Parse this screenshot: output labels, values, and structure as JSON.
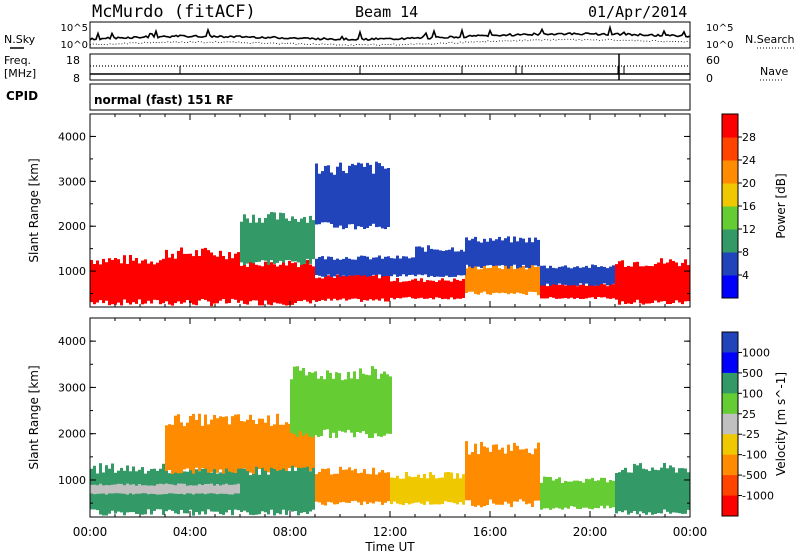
{
  "header": {
    "station": "McMurdo (fitACF)",
    "beam": "Beam 14",
    "date": "01/Apr/2014"
  },
  "side_labels": {
    "nsky": "N.Sky",
    "freq_line1": "Freq.",
    "freq_line2": "[MHz]",
    "cpid": "CPID",
    "nsearch": "N.Search",
    "nave": "Nave"
  },
  "small_axes": {
    "noise_top": "10^5",
    "noise_bottom": "10^0",
    "noise_right_top": "10^5",
    "noise_right_bottom": "10^0",
    "freq_top": "18",
    "freq_bottom": "8",
    "nave_top": "60",
    "nave_bottom": "0"
  },
  "cpid_text": "normal (fast) 151 RF",
  "colors": {
    "red": "#ff0000",
    "orange": "#ff8c00",
    "yellow": "#f0c800",
    "lightgreen": "#66cc33",
    "green": "#339966",
    "darkblue": "#2244bb",
    "blue": "#0000ff",
    "gray": "#c0c0c0"
  },
  "chart_data": [
    {
      "type": "heatmap",
      "name": "Power",
      "ylabel": "Slant Range [km]",
      "xlabel": "Time UT",
      "yticks": [
        "1000",
        "2000",
        "3000",
        "4000"
      ],
      "ylim": [
        200,
        4500
      ],
      "xlim": [
        0,
        24
      ],
      "colorbar_label": "Power [dB]",
      "colorbar_ticks": [
        "4",
        "8",
        "12",
        "16",
        "20",
        "24",
        "28"
      ],
      "colorbar_colors": [
        "#0000ff",
        "#2244bb",
        "#339966",
        "#66cc33",
        "#f0c800",
        "#ff8c00",
        "#ff4400",
        "#ff0000"
      ],
      "bands": [
        {
          "t0": 0,
          "t1": 3,
          "r0": 300,
          "r1": 1250,
          "color": "#ff0000"
        },
        {
          "t0": 3,
          "t1": 6,
          "r0": 300,
          "r1": 1400,
          "color": "#ff0000"
        },
        {
          "t0": 6,
          "t1": 9,
          "r0": 300,
          "r1": 1200,
          "color": "#ff0000"
        },
        {
          "t0": 9,
          "t1": 12,
          "r0": 350,
          "r1": 900,
          "color": "#ff0000"
        },
        {
          "t0": 12,
          "t1": 15,
          "r0": 400,
          "r1": 800,
          "color": "#ff0000"
        },
        {
          "t0": 15,
          "t1": 18,
          "r0": 500,
          "r1": 1100,
          "color": "#ff8c00"
        },
        {
          "t0": 18,
          "t1": 21,
          "r0": 400,
          "r1": 700,
          "color": "#ff0000"
        },
        {
          "t0": 21,
          "t1": 24,
          "r0": 300,
          "r1": 1200,
          "color": "#ff0000"
        },
        {
          "t0": 6,
          "t1": 9,
          "r0": 1200,
          "r1": 2200,
          "color": "#339966"
        },
        {
          "t0": 9,
          "t1": 13,
          "r0": 900,
          "r1": 1300,
          "color": "#2244bb"
        },
        {
          "t0": 13,
          "t1": 15,
          "r0": 900,
          "r1": 1500,
          "color": "#2244bb"
        },
        {
          "t0": 15,
          "t1": 18,
          "r0": 1100,
          "r1": 1700,
          "color": "#2244bb"
        },
        {
          "t0": 18,
          "t1": 21,
          "r0": 700,
          "r1": 1100,
          "color": "#2244bb"
        },
        {
          "t0": 9,
          "t1": 12,
          "r0": 2000,
          "r1": 3300,
          "color": "#2244bb"
        }
      ]
    },
    {
      "type": "heatmap",
      "name": "Velocity",
      "ylabel": "Slant Range [km]",
      "xlabel": "Time UT",
      "yticks": [
        "1000",
        "2000",
        "3000",
        "4000"
      ],
      "ylim": [
        200,
        4500
      ],
      "xlim": [
        0,
        24
      ],
      "colorbar_label": "Velocity [m s^-1]",
      "colorbar_ticks": [
        "1000",
        "500",
        "100",
        "25",
        "-25",
        "-100",
        "-500",
        "-1000"
      ],
      "colorbar_colors": [
        "#2244bb",
        "#0000ff",
        "#339966",
        "#66cc33",
        "#c0c0c0",
        "#f0c800",
        "#ff8c00",
        "#ff4400",
        "#ff0000"
      ],
      "bands": [
        {
          "t0": 0,
          "t1": 6,
          "r0": 300,
          "r1": 1250,
          "color": "#339966"
        },
        {
          "t0": 0,
          "t1": 6,
          "r0": 700,
          "r1": 900,
          "color": "#c0c0c0"
        },
        {
          "t0": 3,
          "t1": 9,
          "r0": 1200,
          "r1": 2300,
          "color": "#ff8c00"
        },
        {
          "t0": 6,
          "t1": 9,
          "r0": 300,
          "r1": 1200,
          "color": "#339966"
        },
        {
          "t0": 9,
          "t1": 12,
          "r0": 500,
          "r1": 1200,
          "color": "#ff8c00"
        },
        {
          "t0": 12,
          "t1": 15,
          "r0": 500,
          "r1": 1100,
          "color": "#f0c800"
        },
        {
          "t0": 15,
          "t1": 18,
          "r0": 500,
          "r1": 1700,
          "color": "#ff8c00"
        },
        {
          "t0": 18,
          "t1": 21,
          "r0": 400,
          "r1": 1000,
          "color": "#66cc33"
        },
        {
          "t0": 21,
          "t1": 24,
          "r0": 300,
          "r1": 1250,
          "color": "#339966"
        },
        {
          "t0": 8,
          "t1": 12,
          "r0": 2000,
          "r1": 3300,
          "color": "#66cc33"
        }
      ]
    }
  ],
  "xaxis": {
    "ticks": [
      "00:00",
      "04:00",
      "08:00",
      "12:00",
      "16:00",
      "20:00",
      "00:00"
    ],
    "label": "Time UT"
  }
}
